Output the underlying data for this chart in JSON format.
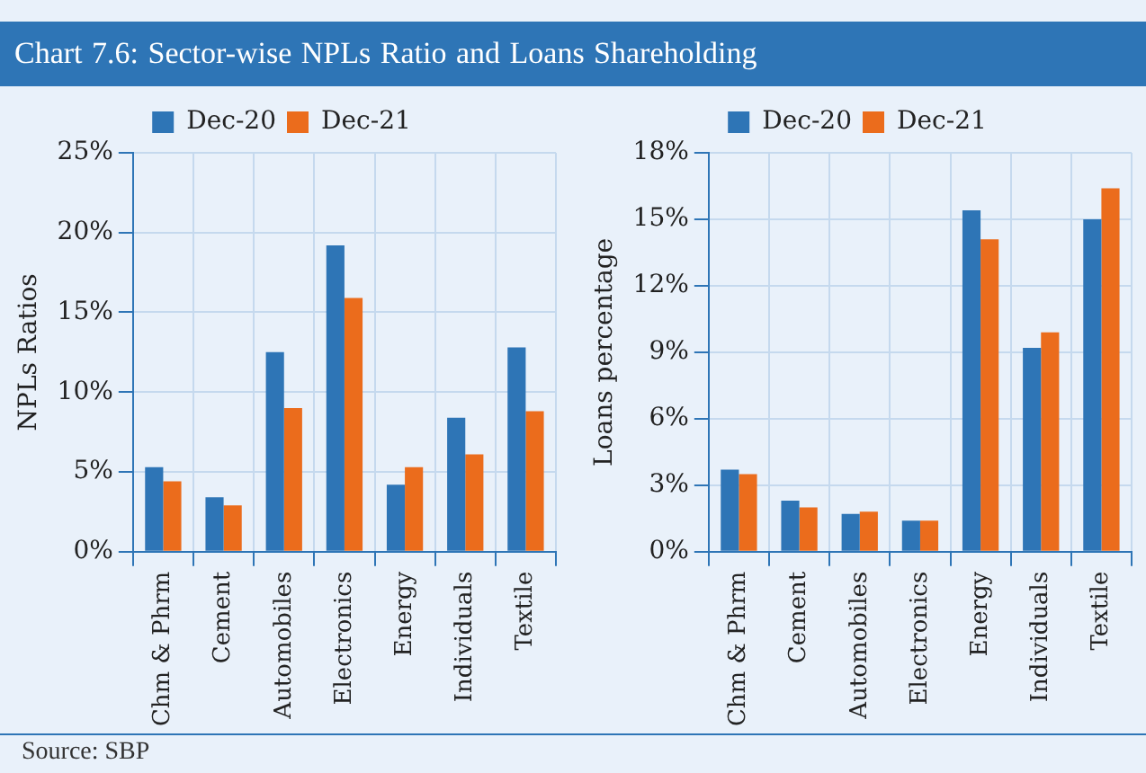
{
  "chart_data": [
    {
      "type": "bar",
      "title": "Chart 7.6: Sector-wise NPLs Ratio and Loans Shareholding",
      "ylabel": "NPLs Ratios",
      "annotations": [
        "Source: SBP"
      ],
      "categories": [
        "Chm & Phrm",
        "Cement",
        "Automobiles",
        "Electronics",
        "Energy",
        "Individuals",
        "Textile"
      ],
      "series": [
        {
          "name": "Dec-20",
          "color": "#2e75b6",
          "values": [
            5.3,
            3.4,
            12.5,
            19.2,
            4.2,
            8.4,
            12.8
          ]
        },
        {
          "name": "Dec-21",
          "color": "#eb6c1c",
          "values": [
            4.4,
            2.9,
            9.0,
            15.9,
            5.3,
            6.1,
            8.8
          ]
        }
      ],
      "ylim": [
        0,
        25
      ],
      "yticks": [
        {
          "value": 0,
          "label": "0%"
        },
        {
          "value": 5,
          "label": "5%"
        },
        {
          "value": 10,
          "label": "10%"
        },
        {
          "value": 15,
          "label": "15%"
        },
        {
          "value": 20,
          "label": "20%"
        },
        {
          "value": 25,
          "label": "25%"
        }
      ],
      "grid": true,
      "legend": "top"
    },
    {
      "type": "bar",
      "ylabel": "Loans percentage",
      "categories": [
        "Chm & Phrm",
        "Cement",
        "Automobiles",
        "Electronics",
        "Energy",
        "Individuals",
        "Textile"
      ],
      "series": [
        {
          "name": "Dec-20",
          "color": "#2e75b6",
          "values": [
            3.7,
            2.3,
            1.7,
            1.4,
            15.4,
            9.2,
            15.0
          ]
        },
        {
          "name": "Dec-21",
          "color": "#eb6c1c",
          "values": [
            3.5,
            2.0,
            1.8,
            1.4,
            14.1,
            9.9,
            16.4
          ]
        }
      ],
      "ylim": [
        0,
        18
      ],
      "yticks": [
        {
          "value": 0,
          "label": "0%"
        },
        {
          "value": 3,
          "label": "3%"
        },
        {
          "value": 6,
          "label": "6%"
        },
        {
          "value": 9,
          "label": "9%"
        },
        {
          "value": 12,
          "label": "12%"
        },
        {
          "value": 15,
          "label": "15%"
        },
        {
          "value": 18,
          "label": "18%"
        }
      ],
      "grid": true,
      "legend": "top"
    }
  ]
}
